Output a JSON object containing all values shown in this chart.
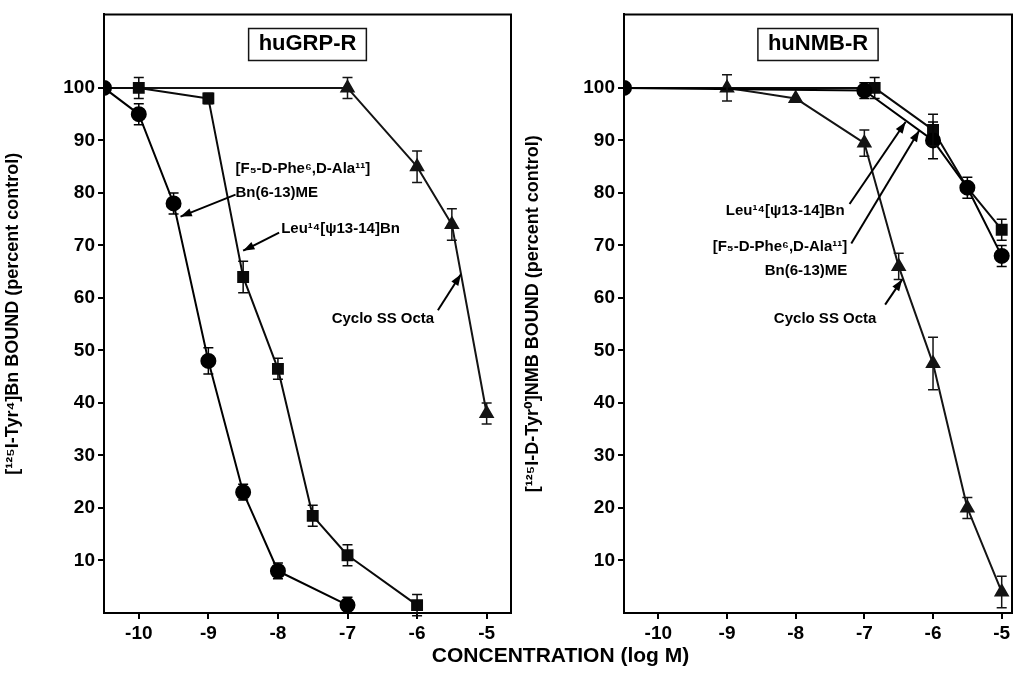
{
  "chart_data": [
    {
      "type": "line",
      "title": "huGRP-R",
      "xlabel": "CONCENTRATION (log M)",
      "ylabel": "[¹²⁵I-Tyr⁴]Bn BOUND (percent control)",
      "xlim": [
        -10.5,
        -4.65
      ],
      "xticks": [
        -10,
        -9,
        -8,
        -7,
        -6,
        -5
      ],
      "ylim": [
        0,
        114
      ],
      "yticks": [
        10,
        20,
        30,
        40,
        50,
        60,
        70,
        80,
        90,
        100
      ],
      "grid": false,
      "legend": false,
      "series": [
        {
          "marker": "circle",
          "color": "#000000",
          "x": [
            -10.5,
            -10,
            -9.5,
            -9,
            -8.5,
            -8,
            -7
          ],
          "values": [
            100,
            95,
            78,
            48,
            23,
            8,
            1.5
          ],
          "errors": [
            null,
            2,
            2,
            2.5,
            1.5,
            1.5,
            1.5
          ]
        },
        {
          "marker": "square",
          "color": "#0a0a0a",
          "x": [
            -10.5,
            -10,
            -9,
            -8.5,
            -8,
            -7.5,
            -7,
            -6
          ],
          "values": [
            100,
            100,
            98,
            64,
            46.5,
            18.5,
            11,
            1.5
          ],
          "errors": [
            null,
            2,
            1,
            3,
            2,
            2,
            2,
            2
          ]
        },
        {
          "marker": "triangle",
          "color": "#141414",
          "x": [
            -10.5,
            -7,
            -6,
            -5.5,
            -5
          ],
          "values": [
            100,
            100,
            85,
            74,
            38
          ],
          "errors": [
            null,
            2,
            3,
            3,
            2
          ]
        }
      ],
      "annotations": [
        {
          "text": "[F₅-D-Phe⁶,D-Ala¹¹]\nBn(6-13)ME",
          "x": -9.4,
          "y": 75.5
        },
        {
          "text": "Leu¹⁴[ψ13-14]Bn",
          "x": -8.5,
          "y": 69
        },
        {
          "text": "Cyclo SS Octa",
          "x": -5.37,
          "y": 64.5
        }
      ]
    },
    {
      "type": "line",
      "title": "huNMB-R",
      "ylabel": "[¹²⁵I-D-Tyr⁰]NMB BOUND (percent control)",
      "xlim": [
        -10.5,
        -4.85
      ],
      "xticks": [
        -10,
        -9,
        -8,
        -7,
        -6,
        -5
      ],
      "ylim": [
        0,
        114
      ],
      "yticks": [
        10,
        20,
        30,
        40,
        50,
        60,
        70,
        80,
        90,
        100
      ],
      "grid": false,
      "legend": false,
      "series": [
        {
          "marker": "circle",
          "color": "#000000",
          "x": [
            -10.5,
            -7,
            -6,
            -5.5,
            -5
          ],
          "values": [
            100,
            99.5,
            90,
            81,
            68
          ],
          "errors": [
            null,
            1.5,
            3.5,
            2,
            2
          ]
        },
        {
          "marker": "square",
          "color": "#0a0a0a",
          "x": [
            -10.5,
            -6.85,
            -6,
            -5.5,
            -5
          ],
          "values": [
            100,
            100,
            92,
            81,
            73
          ],
          "errors": [
            null,
            2,
            3,
            null,
            2
          ]
        },
        {
          "marker": "triangle",
          "color": "#141414",
          "x": [
            -10.5,
            -9,
            -8,
            -7,
            -6.5,
            -6,
            -5.5,
            -5
          ],
          "values": [
            100,
            100,
            98,
            89.5,
            66,
            47.5,
            20,
            4
          ],
          "errors": [
            null,
            2.5,
            null,
            2.5,
            2.5,
            5,
            2,
            3
          ]
        }
      ],
      "annotations": [
        {
          "text": "Leu¹⁴[ψ13-14]Bn",
          "x": -6.4,
          "y": 93.5
        },
        {
          "text": "[F₅-D-Phe⁶,D-Ala¹¹]\nBn(6-13)ME",
          "x": -6.2,
          "y": 91.9
        },
        {
          "text": "Cyclo SS Octa",
          "x": -6.45,
          "y": 63.5
        }
      ]
    }
  ]
}
